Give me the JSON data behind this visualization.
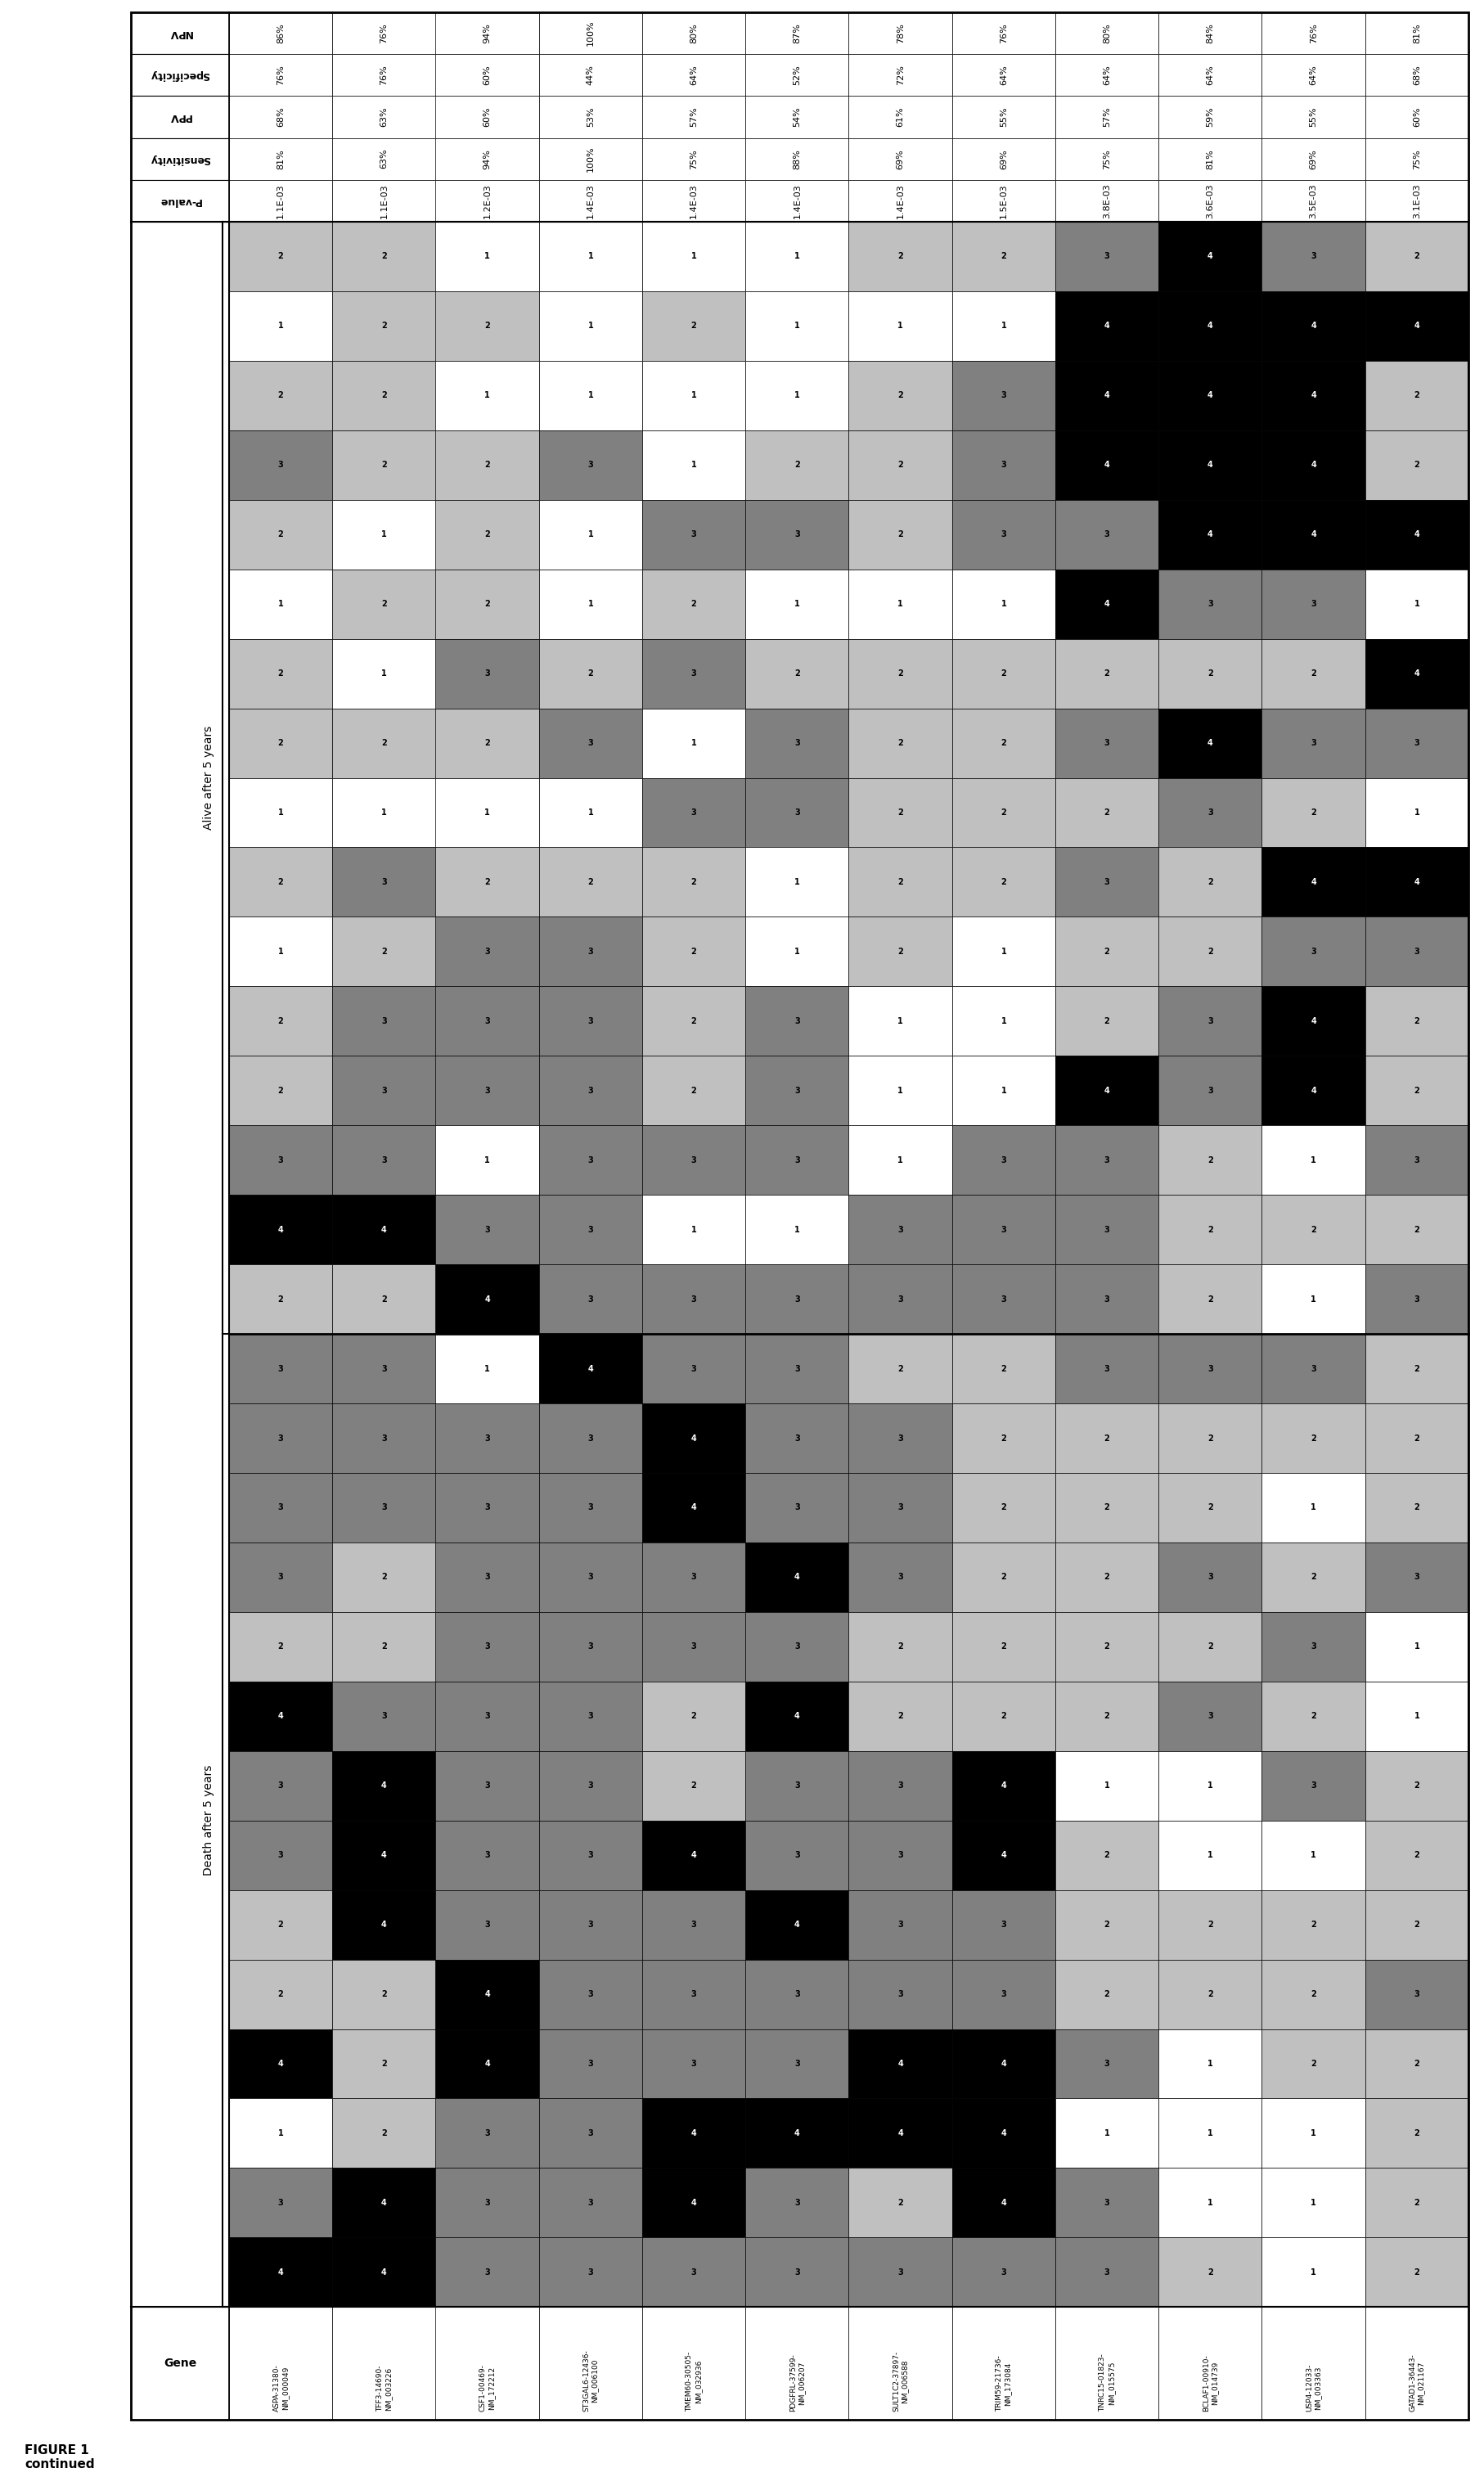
{
  "title": "FIGURE 1\ncontinued",
  "genes": [
    "ASPA-31380-\nNM_000049",
    "TFF3-14690-\nNM_003226",
    "CSF1-00469-\nNM_172212",
    "ST3GAL6-12436-\nNM_006100",
    "TMEM60-30505-\nNM_032936",
    "PDGFRL-37599-\nNM_006207",
    "SULT1C2-37897-\nNM_006588",
    "TRIM59-21736-\nNM_173084",
    "TNRC15-01823-\nNM_015575",
    "BCLAF1-00910-\nNM_014739",
    "USP4-12033-\nNM_003363",
    "GATAD1-36443-\nNM_021167"
  ],
  "p_values": [
    "1.1E-03",
    "1.1E-03",
    "1.2E-03",
    "1.4E-03",
    "1.4E-03",
    "1.4E-03",
    "1.4E-03",
    "1.5E-03",
    "3.8E-03",
    "3.6E-03",
    "3.5E-03",
    "3.1E-03"
  ],
  "sensitivity": [
    "81%",
    "63%",
    "94%",
    "100%",
    "75%",
    "88%",
    "69%",
    "69%",
    "75%",
    "81%",
    "69%",
    "75%"
  ],
  "ppv": [
    "68%",
    "63%",
    "60%",
    "53%",
    "57%",
    "54%",
    "61%",
    "55%",
    "57%",
    "59%",
    "55%",
    "60%"
  ],
  "specificity": [
    "76%",
    "76%",
    "60%",
    "44%",
    "64%",
    "52%",
    "72%",
    "64%",
    "64%",
    "64%",
    "64%",
    "68%"
  ],
  "npv": [
    "86%",
    "76%",
    "94%",
    "100%",
    "80%",
    "87%",
    "78%",
    "76%",
    "80%",
    "84%",
    "76%",
    "81%"
  ],
  "stat_labels": [
    "NPV",
    "Specificity",
    "PPV",
    "Sensitivity",
    "P-value"
  ],
  "section_alive_label": "Alive after 5 years",
  "section_death_label": "Death after 5 years",
  "alive_rows": 16,
  "death_rows": 14,
  "alive_grid": [
    [
      2,
      2,
      1,
      1,
      1,
      1,
      2,
      2,
      3,
      4,
      3,
      2
    ],
    [
      1,
      2,
      2,
      1,
      2,
      1,
      1,
      1,
      4,
      4,
      4,
      4
    ],
    [
      2,
      2,
      1,
      1,
      1,
      1,
      2,
      3,
      4,
      4,
      4,
      2
    ],
    [
      3,
      2,
      2,
      3,
      1,
      2,
      2,
      3,
      4,
      4,
      4,
      2
    ],
    [
      2,
      1,
      2,
      1,
      3,
      3,
      2,
      3,
      3,
      4,
      4,
      4
    ],
    [
      1,
      2,
      2,
      1,
      2,
      1,
      1,
      1,
      4,
      3,
      3,
      1
    ],
    [
      2,
      1,
      3,
      2,
      3,
      2,
      2,
      2,
      2,
      2,
      2,
      4
    ],
    [
      2,
      2,
      2,
      3,
      1,
      3,
      2,
      2,
      3,
      4,
      3,
      3
    ],
    [
      1,
      1,
      1,
      1,
      3,
      3,
      2,
      2,
      2,
      3,
      2,
      1
    ],
    [
      2,
      3,
      2,
      2,
      2,
      1,
      2,
      2,
      3,
      2,
      4,
      4
    ],
    [
      1,
      2,
      3,
      3,
      2,
      1,
      2,
      1,
      2,
      2,
      3,
      3
    ],
    [
      2,
      3,
      3,
      3,
      2,
      3,
      1,
      1,
      2,
      3,
      4,
      2
    ],
    [
      2,
      3,
      3,
      3,
      2,
      3,
      1,
      1,
      4,
      3,
      4,
      2
    ],
    [
      3,
      3,
      1,
      3,
      3,
      3,
      1,
      3,
      3,
      2,
      1,
      3
    ],
    [
      4,
      4,
      3,
      3,
      1,
      1,
      3,
      3,
      3,
      2,
      2,
      2
    ],
    [
      2,
      2,
      4,
      3,
      3,
      3,
      3,
      3,
      3,
      2,
      1,
      3
    ]
  ],
  "death_grid": [
    [
      3,
      3,
      1,
      4,
      3,
      3,
      2,
      2,
      3,
      3,
      3,
      2
    ],
    [
      3,
      3,
      3,
      3,
      4,
      3,
      3,
      2,
      2,
      2,
      2,
      2
    ],
    [
      3,
      3,
      3,
      3,
      4,
      3,
      3,
      2,
      2,
      2,
      1,
      2
    ],
    [
      3,
      2,
      3,
      3,
      3,
      4,
      3,
      2,
      2,
      3,
      2,
      3
    ],
    [
      2,
      2,
      3,
      3,
      3,
      3,
      2,
      2,
      2,
      2,
      3,
      1
    ],
    [
      4,
      3,
      3,
      3,
      2,
      4,
      2,
      2,
      2,
      3,
      2,
      1
    ],
    [
      3,
      4,
      3,
      3,
      2,
      3,
      3,
      4,
      1,
      1,
      3,
      2
    ],
    [
      3,
      4,
      3,
      3,
      4,
      3,
      3,
      4,
      2,
      1,
      1,
      2
    ],
    [
      2,
      4,
      3,
      3,
      3,
      4,
      3,
      3,
      2,
      2,
      2,
      2
    ],
    [
      2,
      2,
      4,
      3,
      3,
      3,
      3,
      3,
      2,
      2,
      2,
      3
    ],
    [
      4,
      2,
      4,
      3,
      3,
      3,
      4,
      4,
      3,
      1,
      2,
      2
    ],
    [
      1,
      2,
      3,
      3,
      4,
      4,
      4,
      4,
      1,
      1,
      1,
      2
    ],
    [
      3,
      4,
      3,
      3,
      4,
      3,
      2,
      4,
      3,
      1,
      1,
      2
    ],
    [
      4,
      4,
      3,
      3,
      3,
      3,
      3,
      3,
      3,
      2,
      1,
      2
    ]
  ],
  "color_map": {
    "1": "#ffffff",
    "2": "#c0c0c0",
    "3": "#808080",
    "4": "#000000"
  },
  "text_color": {
    "1": "#000000",
    "2": "#000000",
    "3": "#000000",
    "4": "#ffffff"
  }
}
